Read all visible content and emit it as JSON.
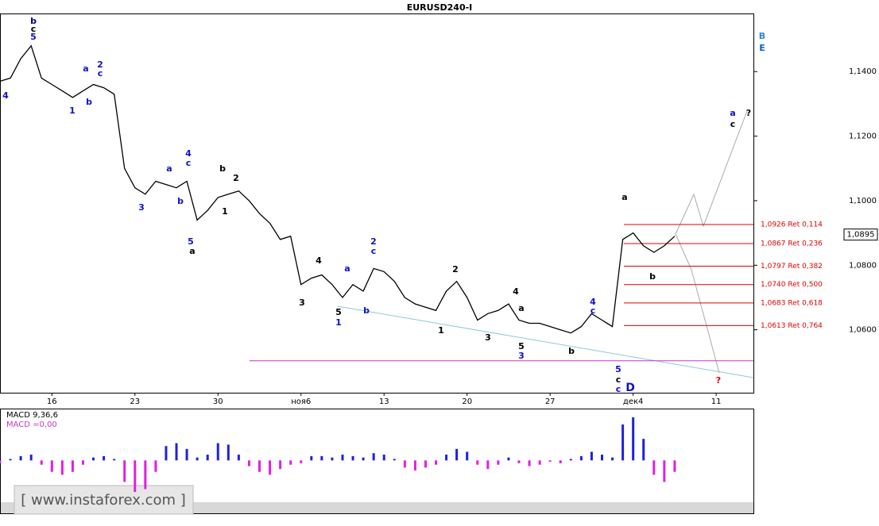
{
  "chart_data": [
    {
      "type": "line",
      "title": "EURUSD240-I",
      "categories": [
        null,
        null,
        null,
        null,
        null,
        "16",
        null,
        null,
        null,
        null,
        null,
        null,
        null,
        "23",
        null,
        null,
        null,
        null,
        null,
        null,
        null,
        "30",
        null,
        null,
        null,
        null,
        null,
        null,
        null,
        "ноя6",
        null,
        null,
        null,
        null,
        null,
        null,
        null,
        "13",
        null,
        null,
        null,
        null,
        null,
        null,
        null,
        "20",
        null,
        null,
        null,
        null,
        null,
        null,
        null,
        "27",
        null,
        null,
        null,
        null,
        null,
        null,
        null,
        "дек4",
        null,
        null,
        null,
        null,
        null,
        null,
        null,
        "11"
      ],
      "values": [
        1.137,
        1.138,
        1.144,
        1.148,
        1.138,
        1.136,
        1.134,
        1.132,
        1.134,
        1.136,
        1.135,
        1.133,
        1.11,
        1.104,
        1.102,
        1.106,
        1.105,
        1.104,
        1.106,
        1.094,
        1.097,
        1.101,
        1.102,
        1.103,
        1.1,
        1.096,
        1.093,
        1.088,
        1.089,
        1.074,
        1.076,
        1.077,
        1.074,
        1.07,
        1.074,
        1.072,
        1.079,
        1.078,
        1.075,
        1.07,
        1.068,
        1.067,
        1.066,
        1.072,
        1.075,
        1.07,
        1.063,
        1.065,
        1.066,
        1.068,
        1.063,
        1.062,
        1.062,
        1.061,
        1.06,
        1.059,
        1.061,
        1.065,
        1.063,
        1.061,
        1.088,
        1.09,
        1.086,
        1.084,
        1.086,
        1.089,
        null,
        null,
        null,
        null
      ],
      "color": "#000000",
      "ylim": [
        1.0405,
        1.158
      ],
      "yticks": [
        {
          "value": 1.06,
          "label": "1,0600"
        },
        {
          "value": 1.08,
          "label": "1,0800"
        },
        {
          "value": 1.1,
          "label": "1,1000"
        },
        {
          "value": 1.12,
          "label": "1,1200"
        },
        {
          "value": 1.14,
          "label": "1,1400"
        }
      ],
      "last_price": {
        "value": 1.0895,
        "label": "1,0895"
      },
      "fib_levels": [
        {
          "value": 1.0926,
          "label": "1,0926 Ret 0,114"
        },
        {
          "value": 1.0867,
          "label": "1,0867 Ret 0,236"
        },
        {
          "value": 1.0797,
          "label": "1,0797 Ret 0,382"
        },
        {
          "value": 1.074,
          "label": "1,0740 Ret 0,500"
        },
        {
          "value": 1.0683,
          "label": "1,0683 Ret 0,618"
        },
        {
          "value": 1.0613,
          "label": "1,0613 Ret 0,764"
        }
      ],
      "fib_color": "#dd0000",
      "horizontal_line": 1.0504,
      "horizontal_line_color": "#cc33cc",
      "annotations": [
        {
          "text": "b",
          "color": "#000080"
        },
        {
          "text": "c",
          "color": "#000000"
        },
        {
          "text": "5",
          "color": "#1010c8"
        },
        {
          "text": "4",
          "color": "#1010c8"
        },
        {
          "text": "a",
          "color": "#1010c8"
        },
        {
          "text": "2",
          "color": "#1010c8"
        },
        {
          "text": "c",
          "color": "#1010c8"
        },
        {
          "text": "b",
          "color": "#1010c8"
        },
        {
          "text": "1",
          "color": "#1010c8"
        },
        {
          "text": "4",
          "color": "#1010c8"
        },
        {
          "text": "c",
          "color": "#1010c8"
        },
        {
          "text": "a",
          "color": "#1010c8"
        },
        {
          "text": "b",
          "color": "#1010c8"
        },
        {
          "text": "3",
          "color": "#1010c8"
        },
        {
          "text": "5",
          "color": "#1010c8"
        },
        {
          "text": "a",
          "color": "#000000"
        },
        {
          "text": "b",
          "color": "#000000"
        },
        {
          "text": "2",
          "color": "#000000"
        },
        {
          "text": "1",
          "color": "#000000"
        },
        {
          "text": "4",
          "color": "#000000"
        },
        {
          "text": "a",
          "color": "#1010c8"
        },
        {
          "text": "2",
          "color": "#1010c8"
        },
        {
          "text": "c",
          "color": "#1010c8"
        },
        {
          "text": "3",
          "color": "#000000"
        },
        {
          "text": "5",
          "color": "#000000"
        },
        {
          "text": "1",
          "color": "#1010c8"
        },
        {
          "text": "b",
          "color": "#1010c8"
        },
        {
          "text": "2",
          "color": "#000000"
        },
        {
          "text": "1",
          "color": "#000000"
        },
        {
          "text": "4",
          "color": "#000000"
        },
        {
          "text": "a",
          "color": "#000000"
        },
        {
          "text": "3",
          "color": "#000000"
        },
        {
          "text": "5",
          "color": "#000000"
        },
        {
          "text": "3",
          "color": "#1010c8"
        },
        {
          "text": "b",
          "color": "#000000"
        },
        {
          "text": "4",
          "color": "#1010c8"
        },
        {
          "text": "c",
          "color": "#1010c8"
        },
        {
          "text": "5",
          "color": "#1010c8"
        },
        {
          "text": "c",
          "color": "#000000"
        },
        {
          "text": "c",
          "color": "#1010c8"
        },
        {
          "text": "D",
          "color": "#1010c8"
        },
        {
          "text": "a",
          "color": "#000000"
        },
        {
          "text": "b",
          "color": "#000000"
        },
        {
          "text": "a",
          "color": "#1010c8"
        },
        {
          "text": "c",
          "color": "#000000"
        },
        {
          "text": "?",
          "color": "#000000"
        },
        {
          "text": "?",
          "color": "#dd0000"
        },
        {
          "text": "B",
          "color": "#2a8ad4"
        },
        {
          "text": "E",
          "color": "#1060c0"
        }
      ],
      "watermark": "[ www.instaforex.com ]"
    },
    {
      "type": "bar",
      "title": "MACD 9,36,6",
      "subtitle": "MACD =0,00",
      "values": [
        -0.0002,
        0.0001,
        0.0003,
        0.0004,
        -0.0003,
        -0.0008,
        -0.001,
        -0.0008,
        -0.0003,
        0.0002,
        0.0003,
        0.0001,
        -0.0015,
        -0.0022,
        -0.002,
        -0.0008,
        0.001,
        0.0012,
        0.0008,
        0.0002,
        0.0004,
        0.0012,
        0.0011,
        0.0004,
        -0.0004,
        -0.0008,
        -0.001,
        -0.0006,
        -0.0003,
        -0.0002,
        0.0003,
        0.0003,
        0.0002,
        0.0004,
        0.0003,
        0.0002,
        0.0005,
        0.0004,
        0.0001,
        -0.0005,
        -0.0007,
        -0.0005,
        -0.0003,
        0.0004,
        0.0008,
        0.0006,
        -0.0003,
        -0.0006,
        -0.0003,
        0.0002,
        -0.0002,
        -0.0004,
        -0.0003,
        -0.0001,
        -0.0002,
        0.0001,
        0.0003,
        0.0006,
        0.0004,
        0.0002,
        0.0025,
        0.003,
        0.0015,
        -0.001,
        -0.0015,
        -0.0008
      ],
      "positive_color": "#2020e0",
      "negative_color": "#e020e0",
      "ylim": [
        -0.0033,
        0.0035
      ]
    }
  ]
}
